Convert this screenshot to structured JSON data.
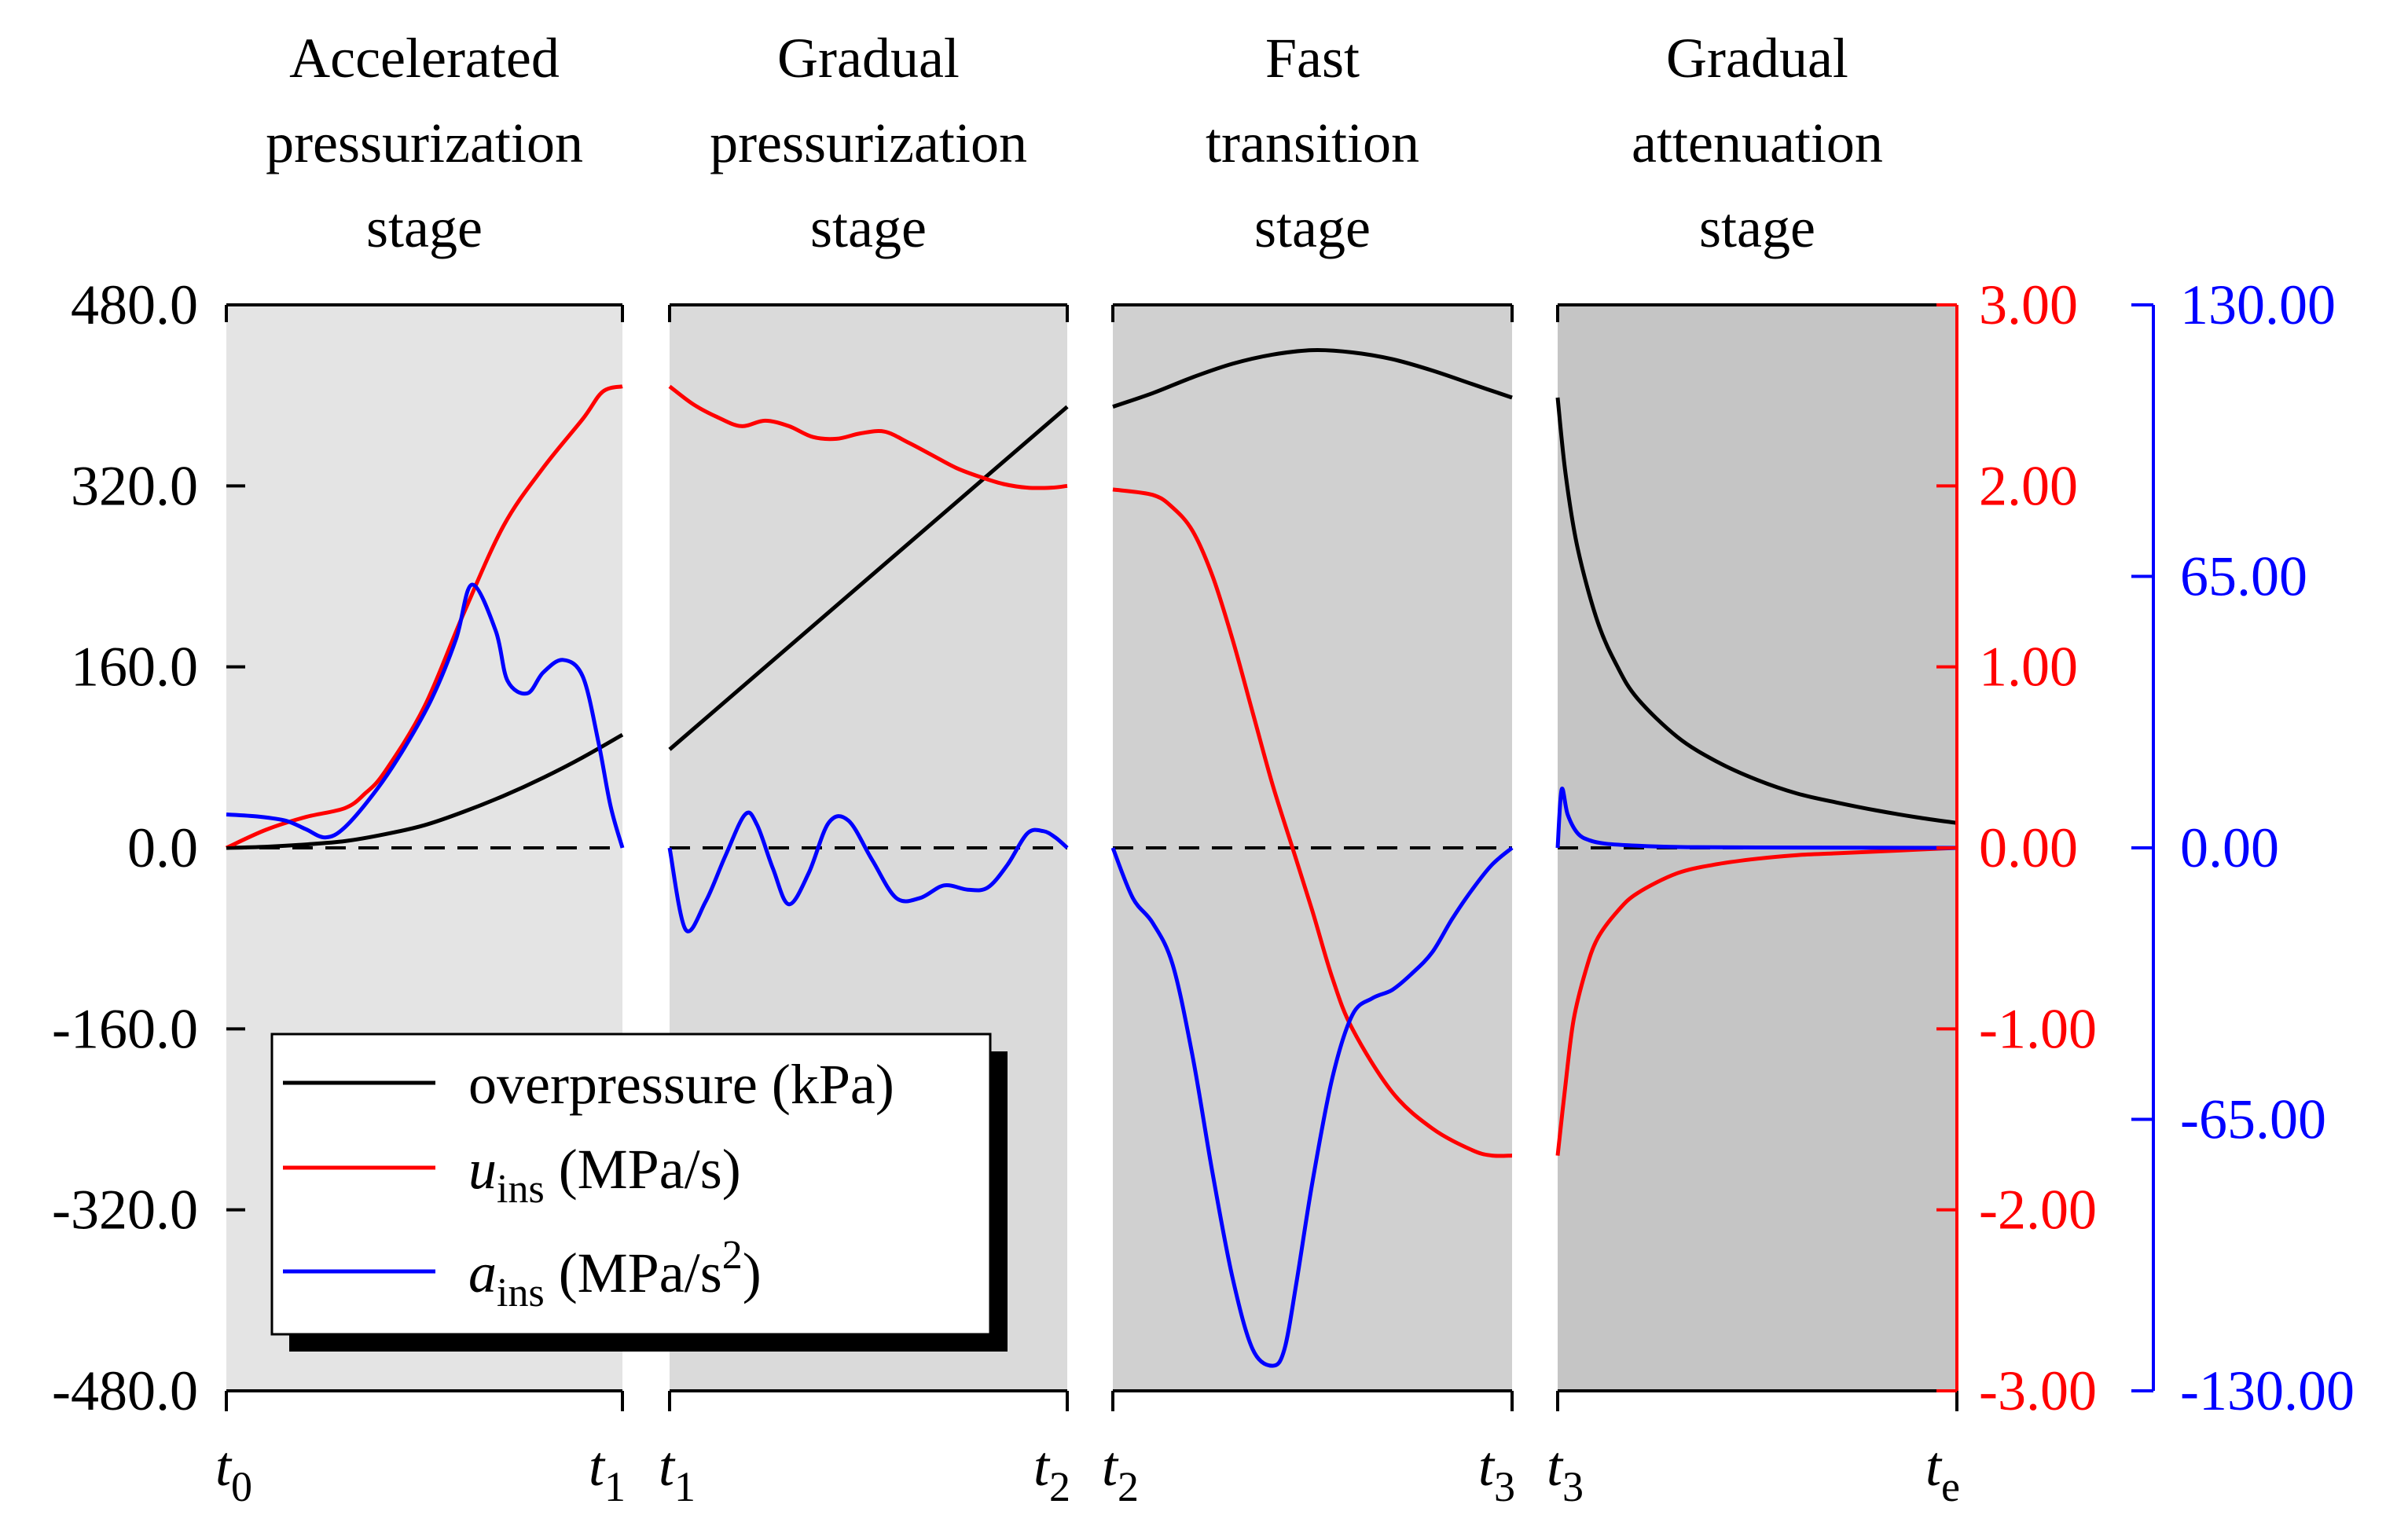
{
  "chart_data": {
    "type": "line",
    "panels": [
      {
        "stage_title": [
          "Accelerated",
          "pressurization",
          "stage"
        ],
        "x_start_label": "t0",
        "x_end_label": "t1",
        "background": "#e4e4e4",
        "series": {
          "overpressure": {
            "x": [
              0,
              0.1,
              0.2,
              0.3,
              0.4,
              0.5,
              0.6,
              0.7,
              0.8,
              0.9,
              1.0
            ],
            "y": [
              0,
              1,
              3,
              6,
              12,
              20,
              32,
              46,
              62,
              80,
              100
            ]
          },
          "u_ins": {
            "x": [
              0,
              0.1,
              0.2,
              0.3,
              0.35,
              0.4,
              0.5,
              0.6,
              0.7,
              0.8,
              0.9,
              0.95,
              1.0
            ],
            "y": [
              0.0,
              0.1,
              0.17,
              0.22,
              0.3,
              0.42,
              0.78,
              1.3,
              1.78,
              2.1,
              2.37,
              2.52,
              2.55
            ]
          },
          "a_ins": {
            "x": [
              0,
              0.08,
              0.15,
              0.2,
              0.25,
              0.3,
              0.38,
              0.45,
              0.52,
              0.58,
              0.62,
              0.68,
              0.71,
              0.76,
              0.8,
              0.85,
              0.9,
              0.94,
              0.97,
              1.0
            ],
            "y": [
              8.0,
              7.5,
              6.5,
              4.5,
              2.5,
              5.0,
              14.0,
              24.0,
              36.0,
              50.0,
              63.0,
              52.0,
              40.0,
              37.0,
              42.0,
              45.0,
              41.0,
              25.0,
              10.0,
              0.0
            ]
          }
        }
      },
      {
        "stage_title": [
          "Gradual",
          "pressurization",
          "stage"
        ],
        "x_start_label": "t1",
        "x_end_label": "t2",
        "background": "#dadada",
        "series": {
          "overpressure": {
            "x": [
              0,
              1
            ],
            "y": [
              87,
              390
            ]
          },
          "u_ins": {
            "x": [
              0,
              0.06,
              0.12,
              0.18,
              0.24,
              0.3,
              0.36,
              0.42,
              0.48,
              0.54,
              0.6,
              0.66,
              0.72,
              0.78,
              0.84,
              0.9,
              0.96,
              1.0
            ],
            "y": [
              2.55,
              2.45,
              2.38,
              2.33,
              2.36,
              2.33,
              2.27,
              2.26,
              2.29,
              2.3,
              2.24,
              2.17,
              2.1,
              2.05,
              2.01,
              1.99,
              1.99,
              2.0
            ]
          },
          "a_ins": {
            "x": [
              0,
              0.04,
              0.09,
              0.14,
              0.19,
              0.22,
              0.26,
              0.3,
              0.35,
              0.4,
              0.45,
              0.51,
              0.57,
              0.63,
              0.69,
              0.75,
              0.8,
              0.85,
              0.9,
              0.94,
              0.97,
              1.0
            ],
            "y": [
              0.0,
              -19.5,
              -13.0,
              -2.0,
              8.0,
              5.5,
              -5.0,
              -13.5,
              -6.0,
              6.0,
              6.5,
              -3.0,
              -12.0,
              -12.0,
              -9.0,
              -10.0,
              -9.5,
              -4.0,
              3.5,
              4.0,
              2.5,
              0.0
            ]
          }
        }
      },
      {
        "stage_title": [
          "Fast",
          "transition",
          "stage"
        ],
        "x_start_label": "t2",
        "x_end_label": "t3",
        "background": "#d0d0d0",
        "series": {
          "overpressure": {
            "x": [
              0,
              0.1,
              0.2,
              0.3,
              0.4,
              0.5,
              0.6,
              0.7,
              0.8,
              0.9,
              1.0
            ],
            "y": [
              390,
              402,
              416,
              428,
              436,
              440,
              438,
              432,
              422,
              410,
              398
            ]
          },
          "u_ins": {
            "x": [
              0,
              0.1,
              0.15,
              0.2,
              0.25,
              0.3,
              0.35,
              0.4,
              0.45,
              0.5,
              0.55,
              0.6,
              0.7,
              0.8,
              0.9,
              0.95,
              1.0
            ],
            "y": [
              1.98,
              1.95,
              1.88,
              1.75,
              1.5,
              1.15,
              0.75,
              0.35,
              0.0,
              -0.35,
              -0.72,
              -1.0,
              -1.35,
              -1.55,
              -1.67,
              -1.7,
              -1.7
            ]
          },
          "a_ins": {
            "x": [
              0,
              0.05,
              0.1,
              0.15,
              0.2,
              0.25,
              0.3,
              0.35,
              0.4,
              0.43,
              0.46,
              0.5,
              0.55,
              0.6,
              0.65,
              0.7,
              0.75,
              0.8,
              0.85,
              0.9,
              0.95,
              1.0
            ],
            "y": [
              0.0,
              -12.0,
              -18.0,
              -28.0,
              -50.0,
              -78.0,
              -103.0,
              -120.0,
              -124.0,
              -120.0,
              -104.0,
              -80.0,
              -55.0,
              -40.0,
              -36.0,
              -34.0,
              -30.0,
              -25.0,
              -17.0,
              -10.0,
              -4.0,
              0.0
            ]
          }
        }
      },
      {
        "stage_title": [
          "Gradual",
          "attenuation",
          "stage"
        ],
        "x_start_label": "t3",
        "x_end_label": "te",
        "background": "#c5c5c5",
        "series": {
          "overpressure": {
            "x": [
              0,
              0.02,
              0.05,
              0.1,
              0.15,
              0.2,
              0.3,
              0.4,
              0.5,
              0.6,
              0.7,
              0.8,
              0.9,
              1.0
            ],
            "y": [
              398,
              330,
              265,
              200,
              160,
              132,
              98,
              76,
              60,
              48,
              40,
              33,
              27,
              22
            ]
          },
          "u_ins": {
            "x": [
              0,
              0.02,
              0.04,
              0.07,
              0.1,
              0.15,
              0.2,
              0.3,
              0.4,
              0.5,
              0.6,
              0.7,
              0.8,
              0.9,
              1.0
            ],
            "y": [
              -1.7,
              -1.3,
              -0.95,
              -0.68,
              -0.5,
              -0.35,
              -0.25,
              -0.14,
              -0.09,
              -0.06,
              -0.04,
              -0.03,
              -0.02,
              -0.01,
              0.0
            ]
          },
          "a_ins": {
            "x": [
              0,
              0.01,
              0.025,
              0.05,
              0.08,
              0.12,
              0.2,
              0.3,
              0.5,
              1.0
            ],
            "y": [
              0.0,
              14.0,
              8.0,
              3.5,
              1.8,
              1.0,
              0.5,
              0.2,
              0.1,
              0.0
            ]
          }
        }
      }
    ],
    "y_left": {
      "label": "overpressure (kPa)",
      "range": [
        -480,
        480
      ],
      "ticks": [
        "480.0",
        "320.0",
        "160.0",
        "0.0",
        "-160.0",
        "-320.0",
        "-480.0"
      ],
      "tick_values": [
        480,
        320,
        160,
        0,
        -160,
        -320,
        -480
      ]
    },
    "y_right_1": {
      "label": "u_ins (MPa/s)",
      "range": [
        -3,
        3
      ],
      "ticks": [
        "3.00",
        "2.00",
        "1.00",
        "0.00",
        "-1.00",
        "-2.00",
        "-3.00"
      ],
      "tick_values": [
        3,
        2,
        1,
        0,
        -1,
        -2,
        -3
      ]
    },
    "y_right_2": {
      "label": "a_ins (MPa/s^2)",
      "range": [
        -130,
        130
      ],
      "ticks": [
        "130.00",
        "65.00",
        "0.00",
        "-65.00",
        "-130.00"
      ],
      "tick_values": [
        130,
        65,
        0,
        -65,
        -130
      ]
    },
    "legend": [
      {
        "key": "overpressure",
        "main": "overpressure (kPa)",
        "italic": "",
        "sub": "",
        "sup": "",
        "after_sup": ""
      },
      {
        "key": "u_ins",
        "main": "",
        "italic": "u",
        "sub": "ins",
        "unit": " (MPa/s)",
        "sup": "",
        "after_sup": ""
      },
      {
        "key": "a_ins",
        "main": "",
        "italic": "a",
        "sub": "ins",
        "unit": " (MPa/s",
        "sup": "2",
        "after_sup": ")"
      }
    ],
    "colors": {
      "overpressure": "#000000",
      "u_ins": "#ff0000",
      "a_ins": "#0000ff",
      "zero_line": "#000000"
    }
  }
}
